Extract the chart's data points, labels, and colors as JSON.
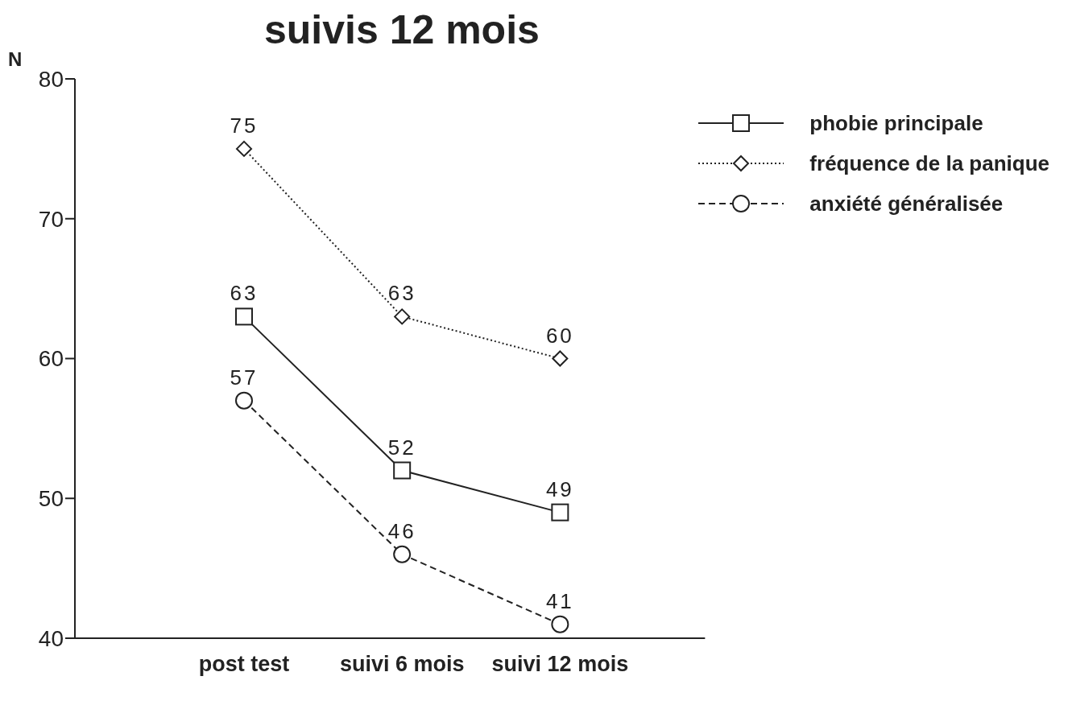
{
  "chart_data": {
    "type": "line",
    "title": "suivis 12 mois",
    "ylabel": "N",
    "categories": [
      "post test",
      "suivi 6 mois",
      "suivi 12 mois"
    ],
    "series": [
      {
        "name": "phobie principale",
        "color": "#222222",
        "values": [
          63,
          52,
          49
        ],
        "marker": "square",
        "line_style": "solid"
      },
      {
        "name": "fréquence de la panique",
        "color": "#222222",
        "values": [
          75,
          63,
          60
        ],
        "marker": "diamond",
        "line_style": "dotted"
      },
      {
        "name": "anxiété généralisée",
        "color": "#222222",
        "values": [
          57,
          46,
          41
        ],
        "marker": "circle",
        "line_style": "dashed"
      }
    ],
    "ylim": [
      40,
      80
    ],
    "yticks": [
      40,
      50,
      60,
      70,
      80
    ],
    "grid": false,
    "legend": "top right",
    "data_labels": true
  }
}
